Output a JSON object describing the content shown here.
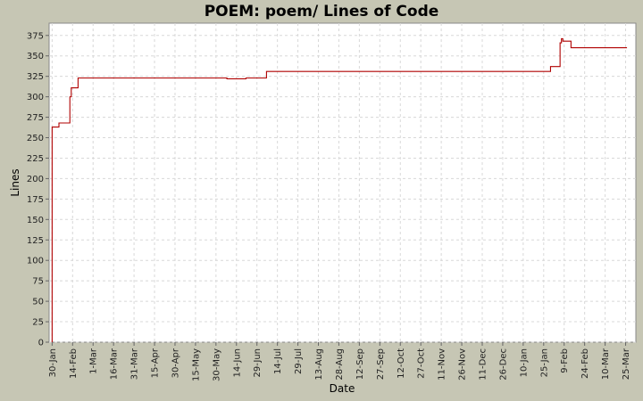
{
  "chart_data": {
    "type": "line",
    "title": "POEM: poem/ Lines of Code",
    "xlabel": "Date",
    "ylabel": "Lines",
    "ylim": [
      0,
      390
    ],
    "yticks": [
      0,
      25,
      50,
      75,
      100,
      125,
      150,
      175,
      200,
      225,
      250,
      275,
      300,
      325,
      350,
      375
    ],
    "x_ticks": [
      "30-Jan",
      "14-Feb",
      "1-Mar",
      "16-Mar",
      "31-Mar",
      "15-Apr",
      "30-Apr",
      "15-May",
      "30-May",
      "14-Jun",
      "29-Jun",
      "14-Jul",
      "29-Jul",
      "13-Aug",
      "28-Aug",
      "12-Sep",
      "27-Sep",
      "12-Oct",
      "27-Oct",
      "11-Nov",
      "26-Nov",
      "11-Dec",
      "26-Dec",
      "10-Jan",
      "25-Jan",
      "9-Feb",
      "24-Feb",
      "10-Mar",
      "25-Mar"
    ],
    "grid": true,
    "line_color": "#b00000",
    "series": [
      {
        "step": true,
        "points": [
          [
            "30-Jan",
            0
          ],
          [
            "30-Jan",
            263
          ],
          [
            "4-Feb",
            263
          ],
          [
            "4-Feb",
            268
          ],
          [
            "12-Feb",
            268
          ],
          [
            "12-Feb",
            300
          ],
          [
            "13-Feb",
            300
          ],
          [
            "13-Feb",
            311
          ],
          [
            "18-Feb",
            311
          ],
          [
            "18-Feb",
            323
          ],
          [
            "7-Jun",
            323
          ],
          [
            "7-Jun",
            322
          ],
          [
            "21-Jun",
            322
          ],
          [
            "21-Jun",
            323
          ],
          [
            "6-Jul",
            323
          ],
          [
            "6-Jul",
            331
          ],
          [
            "30-Jan",
            331
          ],
          [
            "30-Jan",
            337
          ],
          [
            "6-Feb",
            337
          ],
          [
            "6-Feb",
            366
          ],
          [
            "7-Feb",
            366
          ],
          [
            "7-Feb",
            371
          ],
          [
            "8-Feb",
            371
          ],
          [
            "8-Feb",
            368
          ],
          [
            "14-Feb",
            368
          ],
          [
            "14-Feb",
            360
          ],
          [
            "26-Mar",
            360
          ]
        ]
      }
    ]
  }
}
